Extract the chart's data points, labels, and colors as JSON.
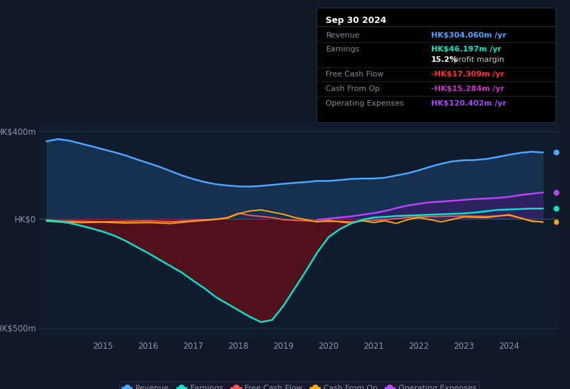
{
  "bg_color": "#111827",
  "plot_bg_color": "#0f1c2e",
  "text_color": "#8899aa",
  "ylim": [
    -550,
    450
  ],
  "xlim": [
    2013.6,
    2025.1
  ],
  "yticks": [
    -500,
    0,
    400
  ],
  "ytick_labels": [
    "-HK$500m",
    "HK$0",
    "HK$400m"
  ],
  "xticks": [
    2015,
    2016,
    2017,
    2018,
    2019,
    2020,
    2021,
    2022,
    2023,
    2024
  ],
  "info_box": {
    "title": "Sep 30 2024",
    "rows": [
      {
        "label": "Revenue",
        "value": "HK$304.060m /yr",
        "value_color": "#4da6ff",
        "sep_below": true
      },
      {
        "label": "Earnings",
        "value": "HK$46.197m /yr",
        "value_color": "#00e5cc",
        "sep_below": false
      },
      {
        "label": "",
        "value": "15.2% profit margin",
        "value_color": "#ffffff",
        "sep_below": true,
        "bold_prefix": "15.2%"
      },
      {
        "label": "Free Cash Flow",
        "value": "-HK$17.309m /yr",
        "value_color": "#ff3333",
        "sep_below": true
      },
      {
        "label": "Cash From Op",
        "value": "-HK$15.284m /yr",
        "value_color": "#cc33cc",
        "sep_below": true
      },
      {
        "label": "Operating Expenses",
        "value": "HK$120.402m /yr",
        "value_color": "#aa44ff",
        "sep_below": false
      }
    ]
  },
  "revenue": {
    "color": "#4da6ff",
    "fill_color": "#163050",
    "x": [
      2013.75,
      2014.0,
      2014.25,
      2014.5,
      2014.75,
      2015.0,
      2015.25,
      2015.5,
      2015.75,
      2016.0,
      2016.25,
      2016.5,
      2016.75,
      2017.0,
      2017.25,
      2017.5,
      2017.75,
      2018.0,
      2018.25,
      2018.5,
      2018.75,
      2019.0,
      2019.25,
      2019.5,
      2019.75,
      2020.0,
      2020.25,
      2020.5,
      2020.75,
      2021.0,
      2021.25,
      2021.5,
      2021.75,
      2022.0,
      2022.25,
      2022.5,
      2022.75,
      2023.0,
      2023.25,
      2023.5,
      2023.75,
      2024.0,
      2024.25,
      2024.5,
      2024.75
    ],
    "y": [
      355,
      365,
      358,
      345,
      332,
      318,
      305,
      290,
      272,
      255,
      238,
      218,
      198,
      182,
      168,
      158,
      152,
      148,
      147,
      150,
      155,
      160,
      164,
      168,
      173,
      173,
      177,
      182,
      184,
      184,
      188,
      198,
      208,
      222,
      238,
      252,
      263,
      268,
      269,
      274,
      283,
      293,
      302,
      307,
      304
    ]
  },
  "earnings": {
    "color": "#00e5cc",
    "fill_neg_color": "#5a0f18",
    "x": [
      2013.75,
      2014.0,
      2014.25,
      2014.5,
      2014.75,
      2015.0,
      2015.25,
      2015.5,
      2015.75,
      2016.0,
      2016.25,
      2016.5,
      2016.75,
      2017.0,
      2017.25,
      2017.5,
      2017.75,
      2018.0,
      2018.25,
      2018.5,
      2018.75,
      2019.0,
      2019.25,
      2019.5,
      2019.75,
      2020.0,
      2020.25,
      2020.5,
      2020.75,
      2021.0,
      2021.25,
      2021.5,
      2021.75,
      2022.0,
      2022.25,
      2022.5,
      2022.75,
      2023.0,
      2023.25,
      2023.5,
      2023.75,
      2024.0,
      2024.25,
      2024.5,
      2024.75
    ],
    "y": [
      -8,
      -12,
      -20,
      -32,
      -45,
      -60,
      -78,
      -102,
      -130,
      -158,
      -188,
      -218,
      -248,
      -285,
      -320,
      -360,
      -390,
      -420,
      -450,
      -475,
      -465,
      -400,
      -320,
      -240,
      -155,
      -85,
      -48,
      -22,
      -5,
      5,
      8,
      12,
      14,
      16,
      18,
      20,
      22,
      24,
      28,
      34,
      40,
      42,
      44,
      46,
      46
    ]
  },
  "free_cash_flow": {
    "color": "#ff5555",
    "x": [
      2013.75,
      2014.0,
      2014.5,
      2015.0,
      2015.5,
      2016.0,
      2016.5,
      2017.0,
      2017.25,
      2017.5,
      2017.75,
      2018.0,
      2018.25,
      2018.5,
      2018.75,
      2019.0,
      2019.25,
      2019.5,
      2019.75,
      2020.0,
      2020.25,
      2020.5,
      2020.75,
      2021.0,
      2021.25,
      2021.5,
      2021.75,
      2022.0,
      2022.5,
      2023.0,
      2023.5,
      2024.0,
      2024.5,
      2024.75
    ],
    "y": [
      -8,
      -10,
      -12,
      -14,
      -12,
      -10,
      -14,
      -8,
      -5,
      -2,
      5,
      25,
      15,
      10,
      5,
      -5,
      -8,
      -10,
      -12,
      -14,
      -12,
      -15,
      -10,
      -8,
      -5,
      0,
      5,
      8,
      10,
      12,
      10,
      15,
      -10,
      -17
    ]
  },
  "cash_from_op": {
    "color": "#ffaa00",
    "x": [
      2013.75,
      2014.0,
      2014.5,
      2015.0,
      2015.5,
      2016.0,
      2016.5,
      2017.0,
      2017.25,
      2017.5,
      2017.75,
      2018.0,
      2018.25,
      2018.5,
      2018.75,
      2019.0,
      2019.25,
      2019.5,
      2019.75,
      2020.0,
      2020.25,
      2020.5,
      2020.75,
      2021.0,
      2021.25,
      2021.5,
      2021.75,
      2022.0,
      2022.5,
      2023.0,
      2023.5,
      2024.0,
      2024.5,
      2024.75
    ],
    "y": [
      -12,
      -15,
      -18,
      -16,
      -20,
      -18,
      -22,
      -12,
      -8,
      -4,
      2,
      22,
      35,
      40,
      30,
      20,
      5,
      -5,
      -15,
      -8,
      -15,
      -20,
      -10,
      -18,
      -10,
      -22,
      -5,
      5,
      -15,
      8,
      5,
      18,
      -12,
      -15
    ]
  },
  "operating_expenses": {
    "color": "#bb44ff",
    "fill_color": "#3a1a6a",
    "x": [
      2019.75,
      2020.0,
      2020.25,
      2020.5,
      2020.75,
      2021.0,
      2021.25,
      2021.5,
      2021.75,
      2022.0,
      2022.25,
      2022.5,
      2022.75,
      2023.0,
      2023.25,
      2023.5,
      2023.75,
      2024.0,
      2024.25,
      2024.5,
      2024.75
    ],
    "y": [
      -5,
      0,
      5,
      10,
      18,
      25,
      35,
      48,
      60,
      68,
      75,
      78,
      82,
      86,
      90,
      92,
      95,
      100,
      108,
      114,
      120
    ]
  },
  "legend": [
    {
      "label": "Revenue",
      "color": "#4da6ff"
    },
    {
      "label": "Earnings",
      "color": "#00e5cc"
    },
    {
      "label": "Free Cash Flow",
      "color": "#ff5555"
    },
    {
      "label": "Cash From Op",
      "color": "#ffaa00"
    },
    {
      "label": "Operating Expenses",
      "color": "#bb44ff"
    }
  ]
}
